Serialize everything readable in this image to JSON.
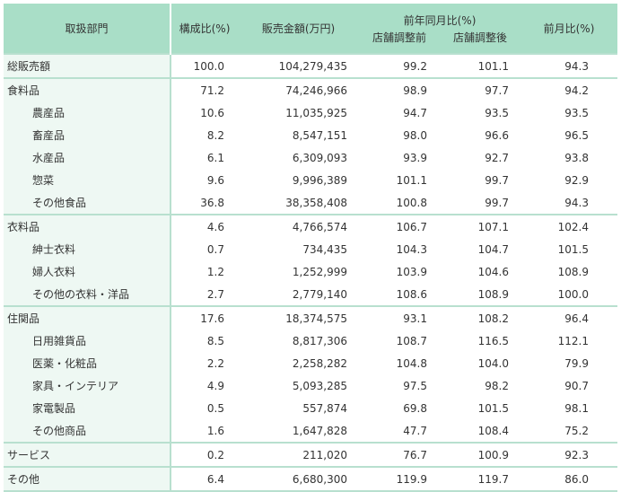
{
  "header": {
    "dept": "取扱部門",
    "share": "構成比(%)",
    "sales": "販売金額(万円)",
    "yoy": "前年同月比(%)",
    "yoy_before": "店舗調整前",
    "yoy_after": "店舗調整後",
    "mom": "前月比(%)"
  },
  "rows": [
    {
      "name": "総販売額",
      "share": "100.0",
      "sales": "104,279,435",
      "before": "99.2",
      "after": "101.1",
      "mom": "94.3",
      "level": 0,
      "group_start": true
    },
    {
      "name": "食料品",
      "share": "71.2",
      "sales": "74,246,966",
      "before": "98.9",
      "after": "97.7",
      "mom": "94.2",
      "level": 0,
      "group_start": true
    },
    {
      "name": "農産品",
      "share": "10.6",
      "sales": "11,035,925",
      "before": "94.7",
      "after": "93.5",
      "mom": "93.5",
      "level": 1
    },
    {
      "name": "畜産品",
      "share": "8.2",
      "sales": "8,547,151",
      "before": "98.0",
      "after": "96.6",
      "mom": "96.5",
      "level": 1
    },
    {
      "name": "水産品",
      "share": "6.1",
      "sales": "6,309,093",
      "before": "93.9",
      "after": "92.7",
      "mom": "93.8",
      "level": 1
    },
    {
      "name": "惣菜",
      "share": "9.6",
      "sales": "9,996,389",
      "before": "101.1",
      "after": "99.7",
      "mom": "92.9",
      "level": 1
    },
    {
      "name": "その他食品",
      "share": "36.8",
      "sales": "38,358,408",
      "before": "100.8",
      "after": "99.7",
      "mom": "94.3",
      "level": 1
    },
    {
      "name": "衣料品",
      "share": "4.6",
      "sales": "4,766,574",
      "before": "106.7",
      "after": "107.1",
      "mom": "102.4",
      "level": 0,
      "group_start": true
    },
    {
      "name": "紳士衣料",
      "share": "0.7",
      "sales": "734,435",
      "before": "104.3",
      "after": "104.7",
      "mom": "101.5",
      "level": 1
    },
    {
      "name": "婦人衣料",
      "share": "1.2",
      "sales": "1,252,999",
      "before": "103.9",
      "after": "104.6",
      "mom": "108.9",
      "level": 1
    },
    {
      "name": "その他の衣料・洋品",
      "share": "2.7",
      "sales": "2,779,140",
      "before": "108.6",
      "after": "108.9",
      "mom": "100.0",
      "level": 1
    },
    {
      "name": "住関品",
      "share": "17.6",
      "sales": "18,374,575",
      "before": "93.1",
      "after": "108.2",
      "mom": "96.4",
      "level": 0,
      "group_start": true
    },
    {
      "name": "日用雑貨品",
      "share": "8.5",
      "sales": "8,817,306",
      "before": "108.7",
      "after": "116.5",
      "mom": "112.1",
      "level": 1
    },
    {
      "name": "医薬・化粧品",
      "share": "2.2",
      "sales": "2,258,282",
      "before": "104.8",
      "after": "104.0",
      "mom": "79.9",
      "level": 1
    },
    {
      "name": "家具・インテリア",
      "share": "4.9",
      "sales": "5,093,285",
      "before": "97.5",
      "after": "98.2",
      "mom": "90.7",
      "level": 1
    },
    {
      "name": "家電製品",
      "share": "0.5",
      "sales": "557,874",
      "before": "69.8",
      "after": "101.5",
      "mom": "98.1",
      "level": 1
    },
    {
      "name": "その他商品",
      "share": "1.6",
      "sales": "1,647,828",
      "before": "47.7",
      "after": "108.4",
      "mom": "75.2",
      "level": 1
    },
    {
      "name": "サービス",
      "share": "0.2",
      "sales": "211,020",
      "before": "76.7",
      "after": "100.9",
      "mom": "92.3",
      "level": 0,
      "group_start": true
    },
    {
      "name": "その他",
      "share": "6.4",
      "sales": "6,680,300",
      "before": "119.9",
      "after": "119.7",
      "mom": "86.0",
      "level": 0,
      "group_start": true
    }
  ]
}
